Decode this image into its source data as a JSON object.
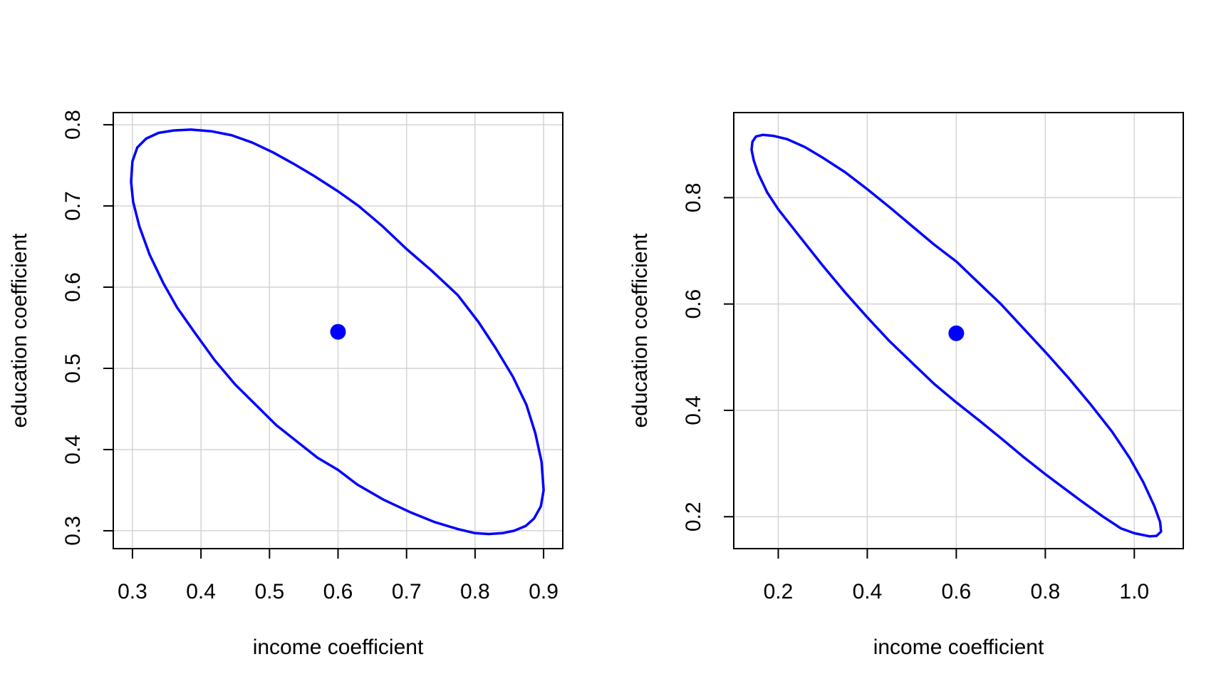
{
  "figure": {
    "background": "#ffffff",
    "grid_color": "#d3d3d3",
    "axis_color": "#000000",
    "series_color": "#0000ff"
  },
  "chart_data": [
    {
      "type": "scatter",
      "title": "",
      "xlabel": "income coefficient",
      "ylabel": "education coefficient",
      "xlim": [
        0.272,
        0.928
      ],
      "ylim": [
        0.278,
        0.815
      ],
      "xticks": [
        0.3,
        0.4,
        0.5,
        0.6,
        0.7,
        0.8,
        0.9
      ],
      "xtick_labels": [
        "0.3",
        "0.4",
        "0.5",
        "0.6",
        "0.7",
        "0.8",
        "0.9"
      ],
      "yticks": [
        0.3,
        0.4,
        0.5,
        0.6,
        0.7,
        0.8
      ],
      "ytick_labels": [
        "0.3",
        "0.4",
        "0.5",
        "0.6",
        "0.7",
        "0.8"
      ],
      "grid": true,
      "point": {
        "x": 0.6,
        "y": 0.545
      },
      "ellipse": {
        "center": [
          0.6,
          0.545
        ],
        "points": [
          [
            0.6,
            0.718
          ],
          [
            0.63,
            0.7
          ],
          [
            0.665,
            0.675
          ],
          [
            0.7,
            0.647
          ],
          [
            0.737,
            0.62
          ],
          [
            0.775,
            0.59
          ],
          [
            0.805,
            0.557
          ],
          [
            0.83,
            0.525
          ],
          [
            0.855,
            0.49
          ],
          [
            0.875,
            0.455
          ],
          [
            0.888,
            0.42
          ],
          [
            0.897,
            0.385
          ],
          [
            0.9,
            0.35
          ],
          [
            0.896,
            0.33
          ],
          [
            0.886,
            0.315
          ],
          [
            0.874,
            0.306
          ],
          [
            0.857,
            0.3
          ],
          [
            0.84,
            0.297
          ],
          [
            0.82,
            0.296
          ],
          [
            0.8,
            0.297
          ],
          [
            0.775,
            0.302
          ],
          [
            0.74,
            0.311
          ],
          [
            0.705,
            0.323
          ],
          [
            0.667,
            0.338
          ],
          [
            0.628,
            0.357
          ],
          [
            0.6,
            0.375
          ],
          [
            0.57,
            0.39
          ],
          [
            0.54,
            0.41
          ],
          [
            0.51,
            0.43
          ],
          [
            0.48,
            0.455
          ],
          [
            0.45,
            0.48
          ],
          [
            0.42,
            0.51
          ],
          [
            0.39,
            0.545
          ],
          [
            0.365,
            0.575
          ],
          [
            0.345,
            0.605
          ],
          [
            0.325,
            0.64
          ],
          [
            0.31,
            0.675
          ],
          [
            0.301,
            0.705
          ],
          [
            0.298,
            0.73
          ],
          [
            0.3,
            0.755
          ],
          [
            0.307,
            0.772
          ],
          [
            0.32,
            0.783
          ],
          [
            0.338,
            0.79
          ],
          [
            0.36,
            0.793
          ],
          [
            0.385,
            0.794
          ],
          [
            0.415,
            0.792
          ],
          [
            0.445,
            0.787
          ],
          [
            0.475,
            0.778
          ],
          [
            0.505,
            0.766
          ],
          [
            0.535,
            0.752
          ],
          [
            0.565,
            0.737
          ],
          [
            0.6,
            0.718
          ]
        ]
      }
    },
    {
      "type": "scatter",
      "title": "",
      "xlabel": "income coefficient",
      "ylabel": "education coefficient",
      "xlim": [
        0.1,
        1.11
      ],
      "ylim": [
        0.14,
        0.96
      ],
      "xticks": [
        0.2,
        0.4,
        0.6,
        0.8,
        1.0
      ],
      "xtick_labels": [
        "0.2",
        "0.4",
        "0.6",
        "0.8",
        "1.0"
      ],
      "yticks": [
        0.2,
        0.4,
        0.6,
        0.8
      ],
      "ytick_labels": [
        "0.2",
        "0.4",
        "0.6",
        "0.8"
      ],
      "grid": true,
      "point": {
        "x": 0.6,
        "y": 0.545
      },
      "ellipse": {
        "center": [
          0.6,
          0.545
        ],
        "points": [
          [
            0.6,
            0.68
          ],
          [
            0.65,
            0.64
          ],
          [
            0.7,
            0.6
          ],
          [
            0.75,
            0.555
          ],
          [
            0.8,
            0.51
          ],
          [
            0.85,
            0.463
          ],
          [
            0.9,
            0.413
          ],
          [
            0.95,
            0.36
          ],
          [
            0.99,
            0.31
          ],
          [
            1.02,
            0.265
          ],
          [
            1.045,
            0.22
          ],
          [
            1.058,
            0.19
          ],
          [
            1.06,
            0.172
          ],
          [
            1.05,
            0.164
          ],
          [
            1.035,
            0.163
          ],
          [
            1.0,
            0.169
          ],
          [
            0.97,
            0.178
          ],
          [
            0.93,
            0.2
          ],
          [
            0.88,
            0.23
          ],
          [
            0.84,
            0.255
          ],
          [
            0.8,
            0.28
          ],
          [
            0.75,
            0.313
          ],
          [
            0.7,
            0.348
          ],
          [
            0.65,
            0.382
          ],
          [
            0.6,
            0.415
          ],
          [
            0.55,
            0.45
          ],
          [
            0.5,
            0.49
          ],
          [
            0.45,
            0.53
          ],
          [
            0.4,
            0.575
          ],
          [
            0.35,
            0.622
          ],
          [
            0.3,
            0.672
          ],
          [
            0.25,
            0.725
          ],
          [
            0.2,
            0.778
          ],
          [
            0.175,
            0.81
          ],
          [
            0.155,
            0.845
          ],
          [
            0.145,
            0.87
          ],
          [
            0.14,
            0.89
          ],
          [
            0.142,
            0.905
          ],
          [
            0.15,
            0.915
          ],
          [
            0.165,
            0.918
          ],
          [
            0.19,
            0.916
          ],
          [
            0.22,
            0.91
          ],
          [
            0.26,
            0.895
          ],
          [
            0.3,
            0.875
          ],
          [
            0.35,
            0.848
          ],
          [
            0.4,
            0.816
          ],
          [
            0.45,
            0.782
          ],
          [
            0.5,
            0.747
          ],
          [
            0.55,
            0.712
          ],
          [
            0.6,
            0.68
          ]
        ]
      }
    }
  ]
}
